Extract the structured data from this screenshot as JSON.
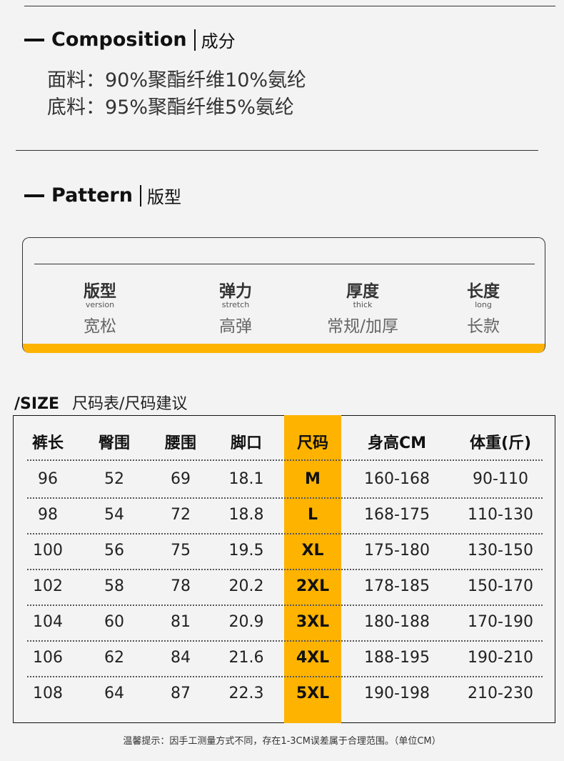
{
  "composition": {
    "title_en": "Composition",
    "title_cn": "成分",
    "lines": [
      "面料：90%聚酯纤维10%氨纶",
      "底料：95%聚酯纤维5%氨纶"
    ]
  },
  "pattern": {
    "title_en": "Pattern",
    "title_cn": "版型",
    "attributes": [
      {
        "label": "版型",
        "label_en": "version",
        "value": "宽松"
      },
      {
        "label": "弹力",
        "label_en": "stretch",
        "value": "高弹"
      },
      {
        "label": "厚度",
        "label_en": "thick",
        "value": "常规/加厚"
      },
      {
        "label": "长度",
        "label_en": "long",
        "value": "长款"
      }
    ]
  },
  "size": {
    "title_en": "/SIZE",
    "title_cn": "尺码表/尺码建议",
    "headers": [
      "裤长",
      "臀围",
      "腰围",
      "脚口",
      "尺码",
      "身高CM",
      "体重(斤)"
    ],
    "rows": [
      [
        "96",
        "52",
        "69",
        "18.1",
        "M",
        "160-168",
        "90-110"
      ],
      [
        "98",
        "54",
        "72",
        "18.8",
        "L",
        "168-175",
        "110-130"
      ],
      [
        "100",
        "56",
        "75",
        "19.5",
        "XL",
        "175-180",
        "130-150"
      ],
      [
        "102",
        "58",
        "78",
        "20.2",
        "2XL",
        "178-185",
        "150-170"
      ],
      [
        "104",
        "60",
        "81",
        "20.9",
        "3XL",
        "180-188",
        "170-190"
      ],
      [
        "106",
        "62",
        "84",
        "21.6",
        "4XL",
        "188-195",
        "190-210"
      ],
      [
        "108",
        "64",
        "87",
        "22.3",
        "5XL",
        "190-198",
        "210-230"
      ]
    ],
    "note": "温馨提示：因手工测量方式不同，存在1-3CM误差属于合理范围。（单位CM）"
  },
  "colors": {
    "accent": "#fdb300",
    "text": "#222222"
  }
}
